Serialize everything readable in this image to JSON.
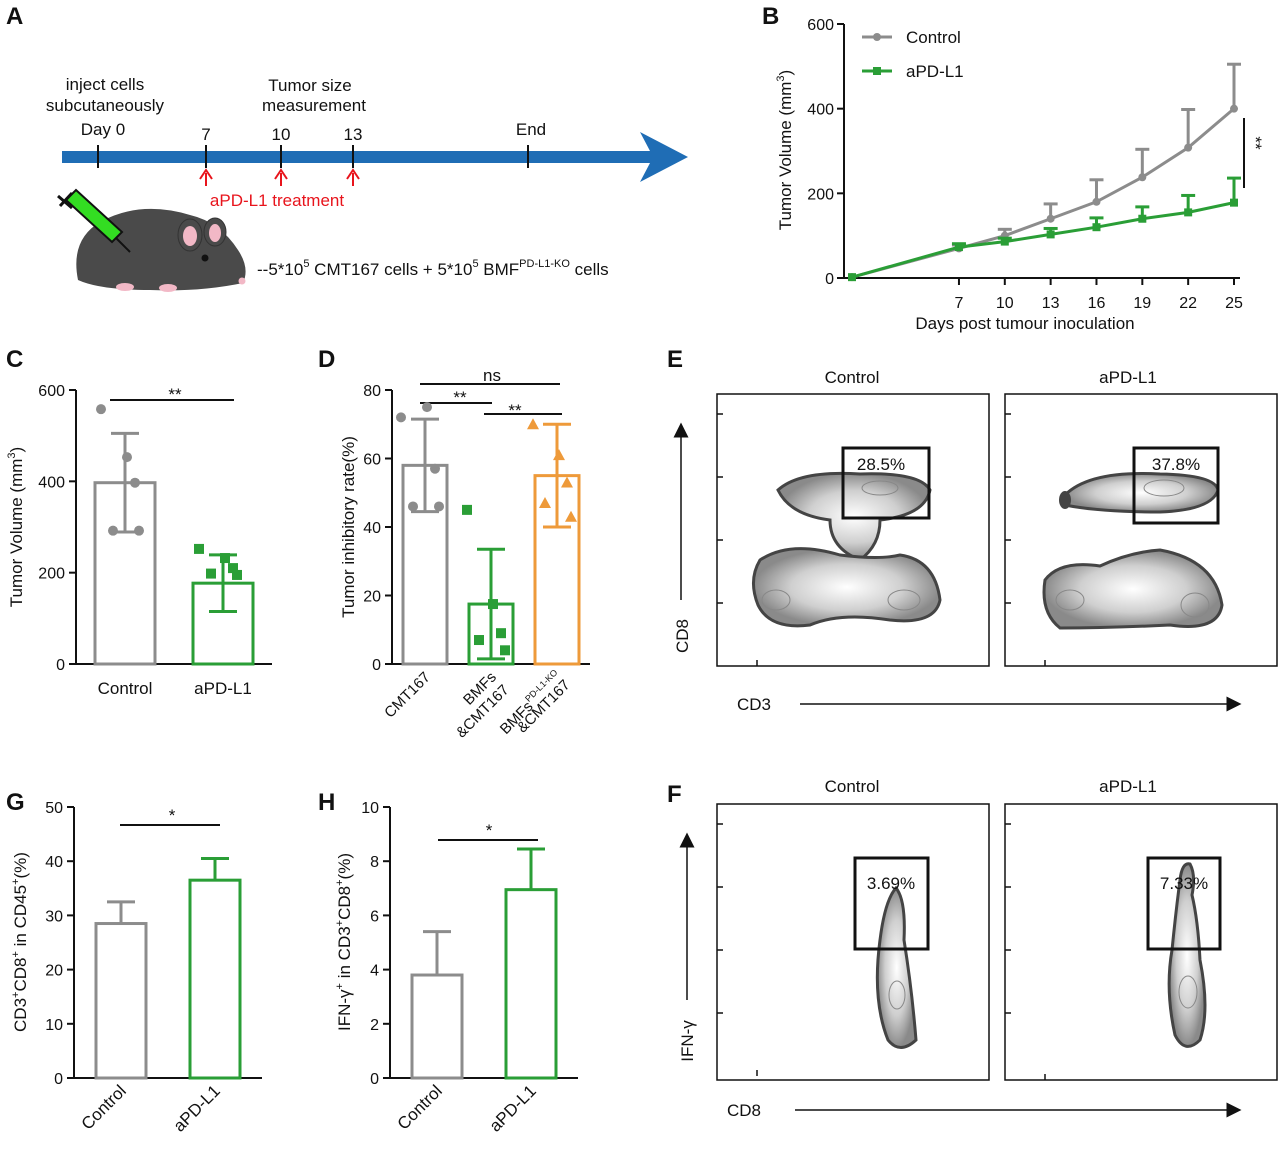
{
  "colors": {
    "gray": "#8c8c8c",
    "green": "#2a9e36",
    "orange": "#ee9a3a",
    "blue": "#1f6db5",
    "red": "#e8141c",
    "mouse": "#4a4a4a"
  },
  "panels": {
    "A": {
      "label": "A",
      "inject_line1": "inject cells",
      "inject_line2": "subcutaneously",
      "day0": "Day 0",
      "tumor_line1": "Tumor size",
      "tumor_line2": "measurement",
      "days": [
        "7",
        "10",
        "13"
      ],
      "end": "End",
      "treatment": "aPD-L1 treatment",
      "cells_base": "--5*10",
      "cells_sup1": "5",
      "cells_mid": " CMT167 cells + 5*10",
      "cells_sup2": "5",
      "cells_mid2": " BMF",
      "cells_sup3": "PD-L1-KO",
      "cells_end": " cells"
    },
    "B": {
      "label": "B",
      "legend": [
        "Control",
        "aPD-L1"
      ],
      "sig": "**"
    },
    "C": {
      "label": "C",
      "sig": "**"
    },
    "D": {
      "label": "D",
      "sig_ns": "ns",
      "sig1": "**",
      "sig2": "**"
    },
    "E": {
      "label": "E",
      "xlabel": "CD3",
      "ylabel": "CD8",
      "panels": [
        "Control",
        "aPD-L1"
      ],
      "gates": [
        "28.5%",
        "37.8%"
      ]
    },
    "F": {
      "label": "F",
      "xlabel": "CD8",
      "ylabel": "IFN-γ",
      "panels": [
        "Control",
        "aPD-L1"
      ],
      "gates": [
        "3.69%",
        "7.33%"
      ]
    },
    "G": {
      "label": "G",
      "sig": "*"
    },
    "H": {
      "label": "H",
      "sig": "*"
    }
  },
  "chart_data": [
    {
      "id": "B",
      "type": "line",
      "xlabel": "Days post tumour inoculation",
      "ylabel": "Tumor Volume (mm³)",
      "ylabel_main": "Tumor Volume (mm",
      "ylabel_sup": "3",
      "ylabel_end": ")",
      "x": [
        0,
        7,
        10,
        13,
        16,
        19,
        22,
        25
      ],
      "xticks": [
        "7",
        "10",
        "13",
        "16",
        "19",
        "22",
        "25"
      ],
      "yticks": [
        "0",
        "200",
        "400",
        "600"
      ],
      "ylim": [
        0,
        600
      ],
      "series": [
        {
          "name": "Control",
          "values": [
            2,
            70,
            100,
            140,
            180,
            238,
            308,
            400
          ],
          "errors": [
            0,
            8,
            15,
            35,
            52,
            66,
            90,
            105
          ]
        },
        {
          "name": "aPD-L1",
          "values": [
            2,
            73,
            86,
            103,
            120,
            140,
            155,
            178
          ],
          "errors": [
            0,
            8,
            8,
            14,
            22,
            28,
            40,
            58
          ]
        }
      ]
    },
    {
      "id": "C",
      "type": "bar",
      "categories": [
        "Control",
        "aPD-L1"
      ],
      "values": [
        397,
        177
      ],
      "errors": [
        108,
        62
      ],
      "points": [
        [
          558,
          453,
          397,
          292,
          292
        ],
        [
          252,
          232,
          210,
          198,
          195
        ]
      ],
      "ylabel_main": "Tumor Volume (mm",
      "ylabel_sup": "3",
      "ylabel_end": ")",
      "yticks": [
        "0",
        "200",
        "400",
        "600"
      ],
      "ylim": [
        0,
        600
      ]
    },
    {
      "id": "D",
      "type": "bar",
      "categories": [
        "CMT167",
        "BMFs&CMT167",
        "BMFsPD-L1-KO&CMT167"
      ],
      "cat_lines": [
        [
          "CMT167"
        ],
        [
          "BMFs",
          "&CMT167"
        ],
        [
          "BMFs",
          "&CMT167"
        ]
      ],
      "cat_sup": [
        "",
        "",
        "PD-L1-KO"
      ],
      "values": [
        58,
        17.5,
        55
      ],
      "errors": [
        13.5,
        16,
        15
      ],
      "points": [
        [
          72,
          75,
          57,
          46,
          46
        ],
        [
          45,
          17.5,
          9,
          7,
          4
        ],
        [
          70,
          61,
          53,
          47,
          43
        ]
      ],
      "ylabel": "Tumor inhibitory rate(%)",
      "yticks": [
        "0",
        "20",
        "40",
        "60",
        "80"
      ],
      "ylim": [
        0,
        80
      ]
    },
    {
      "id": "G",
      "type": "bar",
      "categories": [
        "Control",
        "aPD-L1"
      ],
      "values": [
        28.5,
        36.5
      ],
      "errors": [
        4,
        4
      ],
      "ylabel": "CD3⁺CD8⁺ in CD45⁺(%)",
      "ylabel_parts": [
        "CD3",
        "+",
        "CD8",
        "+",
        " in CD45",
        "+",
        "(%)"
      ],
      "yticks": [
        "0",
        "10",
        "20",
        "30",
        "40",
        "50"
      ],
      "ylim": [
        0,
        50
      ]
    },
    {
      "id": "H",
      "type": "bar",
      "categories": [
        "Control",
        "aPD-L1"
      ],
      "values": [
        3.8,
        6.95
      ],
      "errors": [
        1.6,
        1.5
      ],
      "ylabel": "IFN-γ⁺ in CD3⁺CD8⁺(%)",
      "ylabel_parts": [
        "IFN-γ",
        "+",
        " in CD3",
        "+",
        "CD8",
        "+",
        "(%)"
      ],
      "yticks": [
        "0",
        "2",
        "4",
        "6",
        "8",
        "10"
      ],
      "ylim": [
        0,
        10
      ]
    }
  ]
}
